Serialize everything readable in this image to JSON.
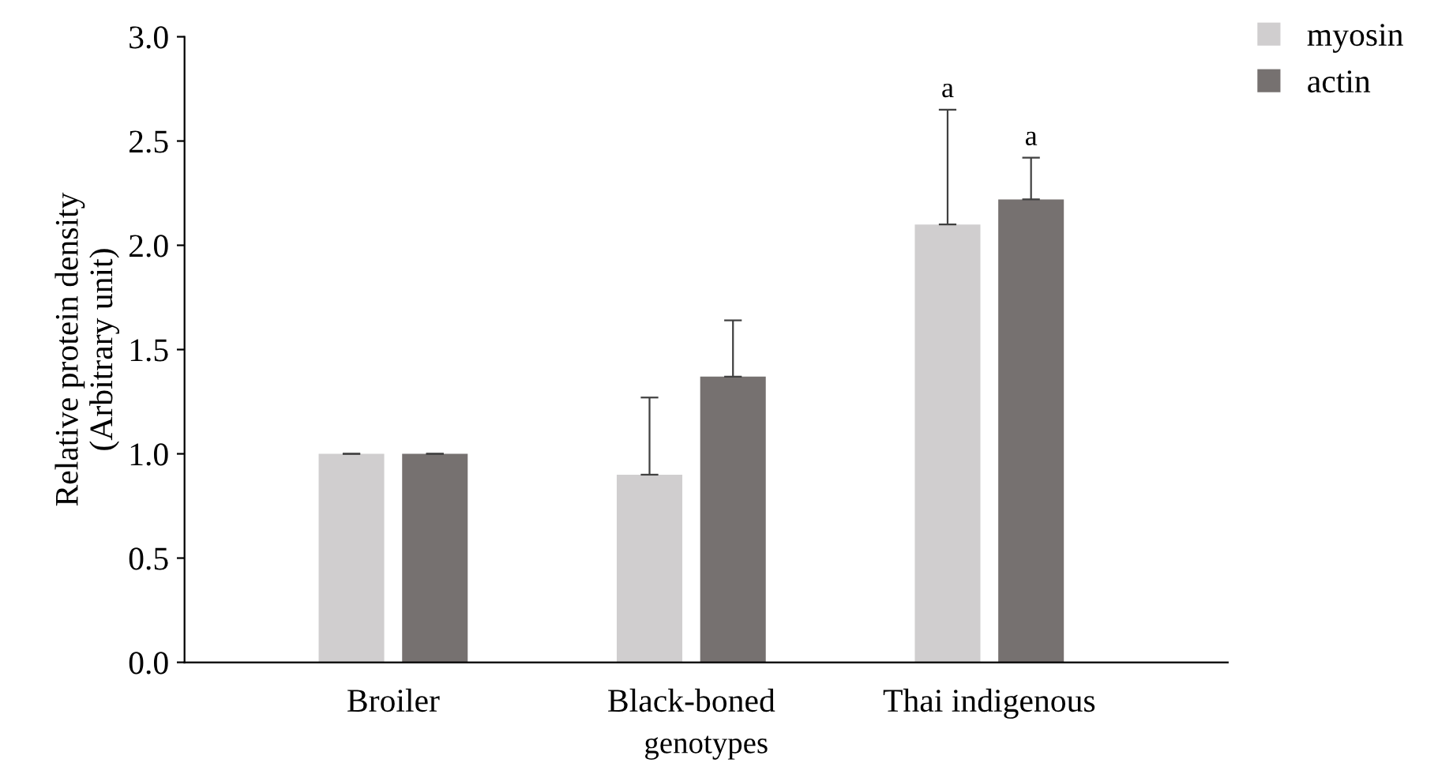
{
  "chart_data": {
    "type": "bar",
    "xlabel": "genotypes",
    "ylabel": "Relative protein density\n(Arbitrary unit)",
    "categories": [
      "Broiler",
      "Black-boned",
      "Thai indigenous"
    ],
    "series": [
      {
        "name": "myosin",
        "color": "#d0cecf",
        "values": [
          1.0,
          0.9,
          2.1
        ],
        "errors": [
          0,
          0.37,
          0.55
        ]
      },
      {
        "name": "actin",
        "color": "#767170",
        "values": [
          1.0,
          1.37,
          2.22
        ],
        "errors": [
          0,
          0.27,
          0.2
        ]
      }
    ],
    "annotations": [
      "a",
      "a"
    ],
    "ylim": [
      0,
      3.0
    ],
    "yticks": [
      {
        "value": 0,
        "label": "0.0"
      },
      {
        "value": 0.5,
        "label": "0.5"
      },
      {
        "value": 1.0,
        "label": "1.0"
      },
      {
        "value": 1.5,
        "label": "1.5"
      },
      {
        "value": 2.0,
        "label": "2.0"
      },
      {
        "value": 2.5,
        "label": "2.5"
      },
      {
        "value": 3.0,
        "label": "3.0"
      }
    ],
    "grid": false,
    "legend": "top right"
  }
}
